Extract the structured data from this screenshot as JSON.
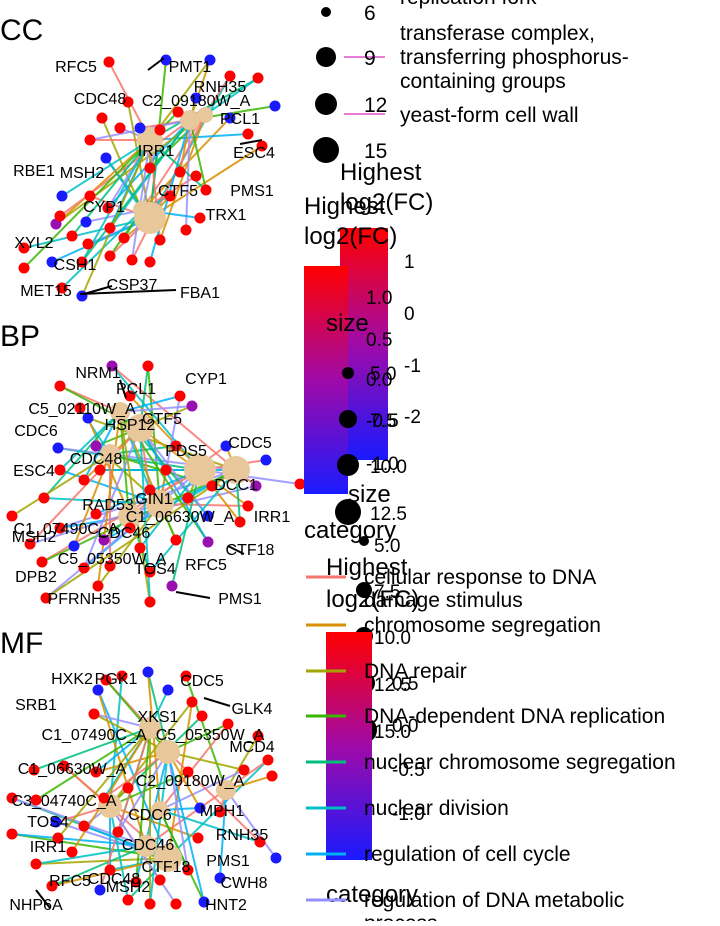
{
  "panels": [
    {
      "title": "CC",
      "labels": [
        "RFC5",
        "PMT1",
        "RNH35",
        "CDC48",
        "C2_09180W_A",
        "PCL1",
        "ESC4",
        "IRR1",
        "RBE1",
        "MSH2",
        "CTF5",
        "PMS1",
        "CYP1",
        "TRX1",
        "XYL2",
        "CSH1",
        "CSP37",
        "MET15",
        "FBA1"
      ]
    },
    {
      "title": "BP",
      "labels": [
        "NRM1",
        "PCL1",
        "CYP1",
        "C5_02110W_A",
        "CTF5",
        "CDC6",
        "HSP12",
        "CDC5",
        "PDS5",
        "CDC48",
        "ESC4",
        "DCC1",
        "GIN1",
        "RAD53",
        "C1_06630W_A",
        "IRR1",
        "C1_07490C_A",
        "CDC46",
        "MSH2",
        "CTF18",
        "C5_05350W_A",
        "RFC5",
        "DPB2",
        "TOS4",
        "PFRNH35",
        "PMS1"
      ]
    },
    {
      "title": "MF",
      "labels": [
        "HXK2",
        "PGK1",
        "CDC5",
        "SRB1",
        "GLK4",
        "XKS1",
        "C1_07490C_A",
        "C5_05350W_A",
        "MCD4",
        "C1_06630W_A",
        "C2_09180W_A",
        "C3_04740C_A",
        "MPH1",
        "TOS4",
        "CDC6",
        "RNH35",
        "IRR1",
        "CDC46",
        "PMS1",
        "CTF18",
        "RFC5",
        "CDC48",
        "CWH8",
        "MSH2",
        "NHP6A",
        "HNT2"
      ]
    }
  ],
  "legend": {
    "size_top_values": [
      "6",
      "9",
      "12",
      "15"
    ],
    "top_category_lines": [
      "replication fork",
      "transferase complex,",
      "transferring phosphorus-",
      "containing groups",
      "yeast-form cell wall"
    ],
    "fc_title_a": [
      "Highest",
      "log2(FC)"
    ],
    "fc_ticks_a": [
      "1.0",
      "0.5",
      "0.0",
      "-0.5",
      "-1.0"
    ],
    "fc_title_b": [
      "Highest",
      "log2(FC)"
    ],
    "fc_ticks_b": [
      "1",
      "0",
      "-1",
      "-2"
    ],
    "size_title": "size",
    "size_values_a": [
      "5.0",
      "7.5",
      "10.0",
      "12.5"
    ],
    "size_values_b": [
      "5.0",
      "7.5",
      "10.0",
      "12.5",
      "15.0"
    ],
    "category_title": "category",
    "categories": [
      {
        "label": "cellular response to DNA damage stimulus",
        "lines": [
          "cellular response to DNA",
          "damage stimulus"
        ],
        "color": "#F8766D"
      },
      {
        "label": "chromosome segregation",
        "lines": [
          "chromosome segregation"
        ],
        "color": "#D89000"
      },
      {
        "label": "DNA repair",
        "lines": [
          "DNA repair"
        ],
        "color": "#A3A500"
      },
      {
        "label": "DNA-dependent DNA replication",
        "lines": [
          "DNA-dependent DNA replication"
        ],
        "color": "#39B600"
      },
      {
        "label": "nuclear chromosome segregation",
        "lines": [
          "nuclear chromosome segregation"
        ],
        "color": "#00BF7D"
      },
      {
        "label": "nuclear division",
        "lines": [
          "nuclear division"
        ],
        "color": "#00BFC4"
      },
      {
        "label": "regulation of cell cycle",
        "lines": [
          "regulation of cell cycle"
        ],
        "color": "#00B0F6"
      },
      {
        "label": "regulation of DNA metabolic process",
        "lines": [
          "regulation of DNA metabolic",
          "process"
        ],
        "color": "#9590FF"
      }
    ],
    "fc_title_c": [
      "Highest",
      "log2(FC)"
    ],
    "fc_ticks_c": [
      "0.5",
      "0.0",
      "-0.5",
      "-1.0"
    ],
    "category_title_b": "category"
  },
  "colors": {
    "high": "#ff0000",
    "mid": "#9a0fb0",
    "low": "#1a1aff",
    "category_node": "#e8c79a",
    "label_line": "#000000"
  }
}
